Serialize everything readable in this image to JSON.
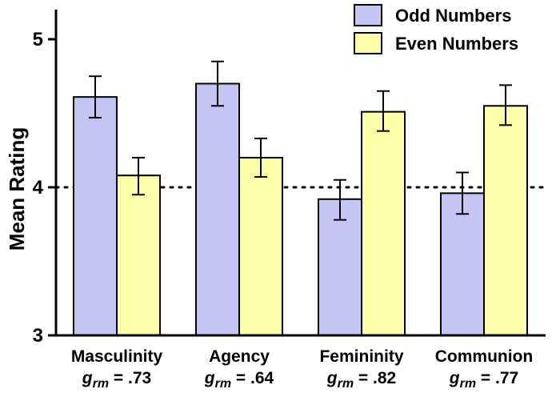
{
  "chart_data": {
    "type": "bar",
    "title": "",
    "xlabel": "",
    "ylabel": "Mean Rating",
    "ylim": [
      3,
      5.2
    ],
    "yticks": [
      3,
      4,
      5
    ],
    "ytick_labels": [
      "3",
      "4",
      "5"
    ],
    "categories": [
      "Masculinity",
      "Agency",
      "Femininity",
      "Communion"
    ],
    "effect_sizes": [
      {
        "symbol": "g",
        "subscript": "rm",
        "text": " = .73"
      },
      {
        "symbol": "g",
        "subscript": "rm",
        "text": " = .64"
      },
      {
        "symbol": "g",
        "subscript": "rm",
        "text": " = .82"
      },
      {
        "symbol": "g",
        "subscript": "rm",
        "text": " = .77"
      }
    ],
    "reference_line": 4,
    "series": [
      {
        "name": "Odd Numbers",
        "color": "#c5c5f5",
        "values": [
          4.61,
          4.7,
          3.92,
          3.96
        ],
        "error_low": [
          4.47,
          4.55,
          3.78,
          3.82
        ],
        "error_high": [
          4.75,
          4.85,
          4.05,
          4.1
        ]
      },
      {
        "name": "Even Numbers",
        "color": "#ffffaa",
        "values": [
          4.08,
          4.2,
          4.51,
          4.55
        ],
        "error_low": [
          3.95,
          4.07,
          4.38,
          4.42
        ],
        "error_high": [
          4.2,
          4.33,
          4.65,
          4.69
        ]
      }
    ],
    "legend_position": "top-right"
  }
}
